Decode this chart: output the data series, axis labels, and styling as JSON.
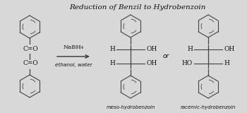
{
  "title": "Reduction of Benzil to Hydrobenzoin",
  "bg_color": "#d8d8d8",
  "reagent_line1": "NaBH₄",
  "reagent_line2": "ethanol, water",
  "label_meso": "meso-hydrobenzoin",
  "label_racemic": "racemic-hydrobenzoin",
  "label_or": "or",
  "line_color": "#444444",
  "text_color": "#111111",
  "figsize": [
    3.5,
    1.6
  ],
  "dpi": 100
}
